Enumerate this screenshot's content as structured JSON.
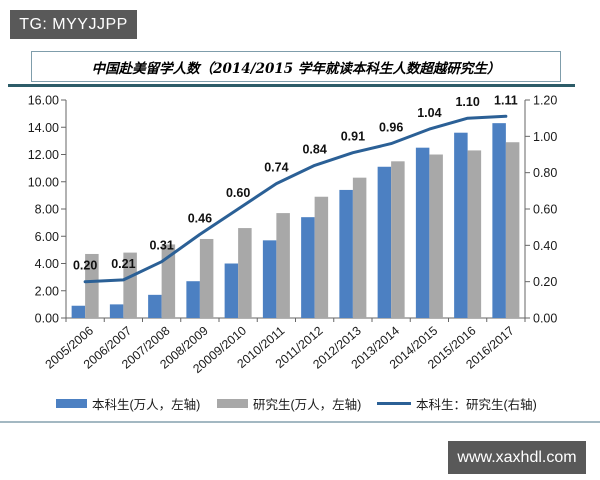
{
  "badges": {
    "tg_label": "TG: MYYJJPP",
    "site_label": "www.xaxhdl.com",
    "bg_color": "#595959"
  },
  "chart_data": {
    "type": "bar",
    "subtype": "grouped bars with overlay line (dual axis)",
    "title": "中国赴美留学人数（2014/2015 学年就读本科生人数超越研究生）",
    "categories": [
      "2005/2006",
      "2006/2007",
      "2007/2008",
      "2008/2009",
      "20009/2010",
      "2010/2011",
      "2011/2012",
      "2012/2013",
      "2013/2014",
      "2014/2015",
      "2015/2016",
      "2016/2017"
    ],
    "series": [
      {
        "name": "本科生(万人，左轴)",
        "type": "bar",
        "axis": "left",
        "color": "#4c80c2",
        "values": [
          0.9,
          1.0,
          1.7,
          2.7,
          4.0,
          5.7,
          7.4,
          9.4,
          11.1,
          12.5,
          13.6,
          14.3
        ]
      },
      {
        "name": "研究生(万人，左轴)",
        "type": "bar",
        "axis": "left",
        "color": "#a8a8a8",
        "values": [
          4.7,
          4.8,
          5.4,
          5.8,
          6.6,
          7.7,
          8.9,
          10.3,
          11.5,
          12.0,
          12.3,
          12.9
        ]
      },
      {
        "name": "本科生：研究生(右轴)",
        "type": "line",
        "axis": "right",
        "color": "#2b6096",
        "values": [
          0.2,
          0.21,
          0.31,
          0.46,
          0.6,
          0.74,
          0.84,
          0.91,
          0.96,
          1.04,
          1.1,
          1.11
        ],
        "point_labels": [
          "0.20",
          "0.21",
          "0.31",
          "0.46",
          "0.60",
          "0.74",
          "0.84",
          "0.91",
          "0.96",
          "1.04",
          "1.10",
          "1.11"
        ]
      }
    ],
    "left_axis": {
      "min": 0,
      "max": 16,
      "step": 2,
      "tick_labels": [
        "0.00",
        "2.00",
        "4.00",
        "6.00",
        "8.00",
        "10.00",
        "12.00",
        "14.00",
        "16.00"
      ]
    },
    "right_axis": {
      "min": 0,
      "max": 1.2,
      "step": 0.2,
      "tick_labels": [
        "0.00",
        "0.20",
        "0.40",
        "0.60",
        "0.80",
        "1.00",
        "1.20"
      ]
    },
    "grid": false,
    "legend_position": "bottom",
    "axis_color": "#666666",
    "text_color": "#1a1a1a"
  }
}
